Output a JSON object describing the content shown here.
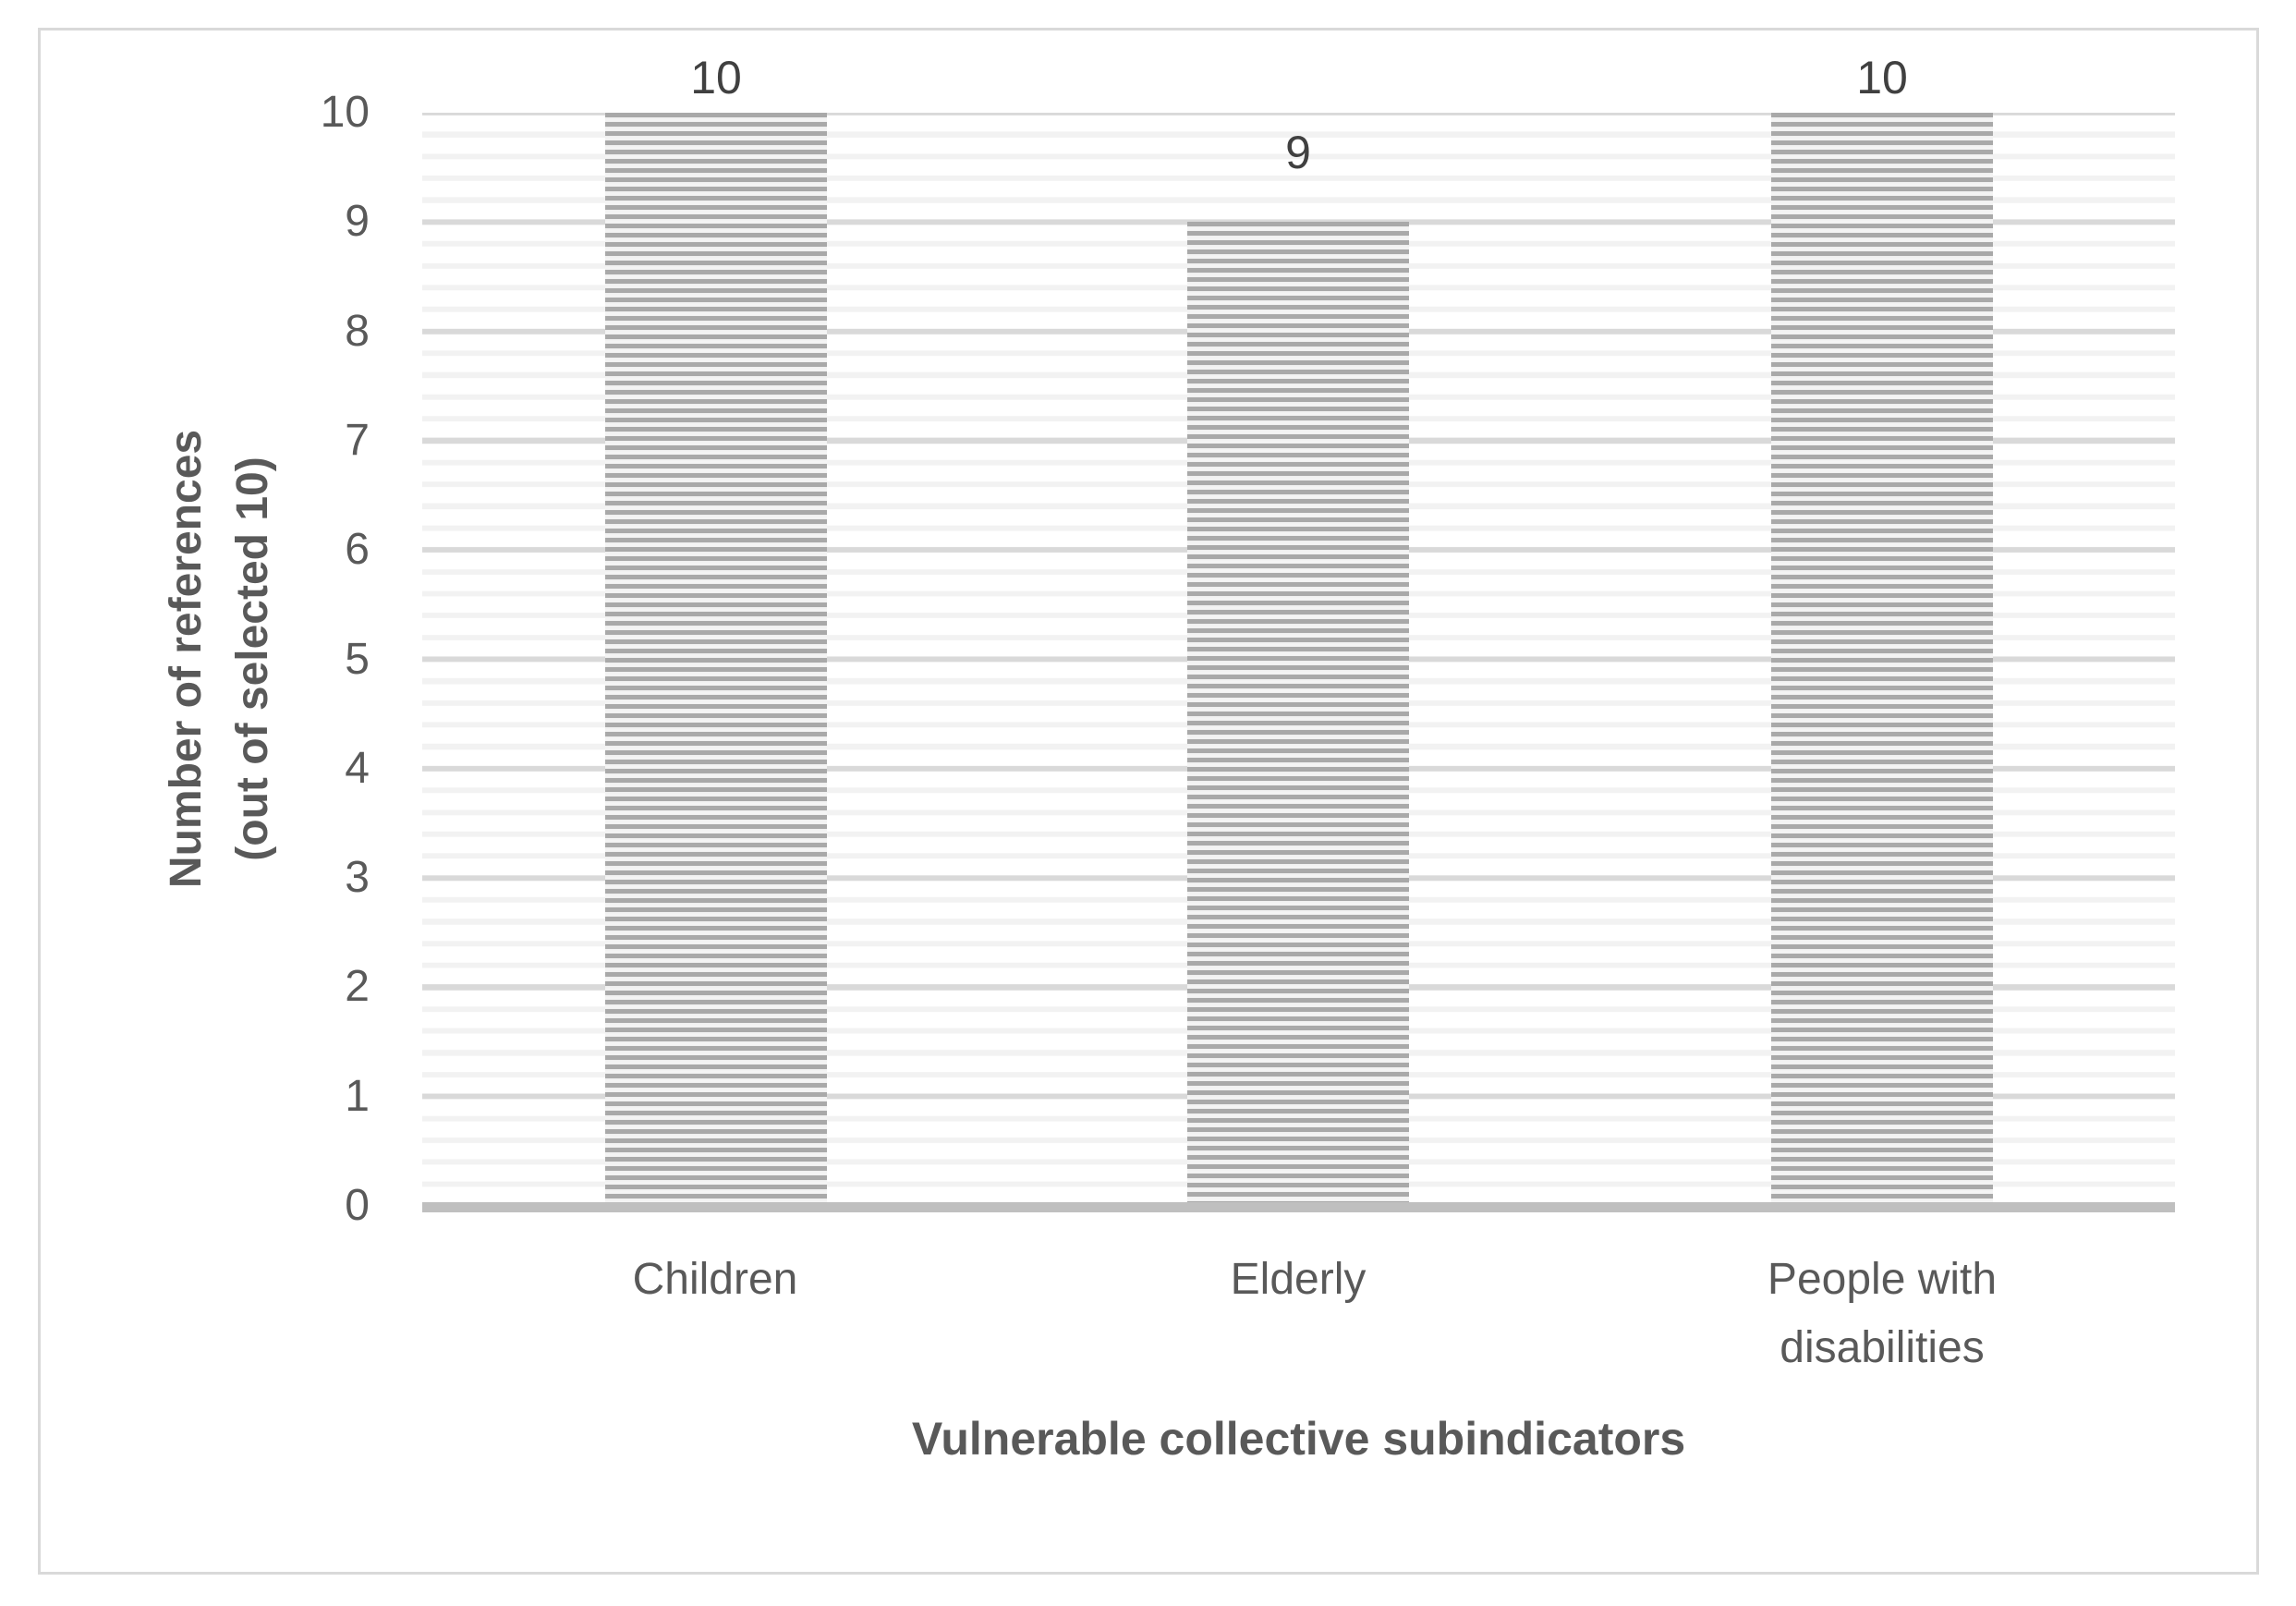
{
  "chart_data": {
    "type": "bar",
    "title": "",
    "categories": [
      "Children",
      "Elderly",
      "People with disabilities"
    ],
    "values": [
      10,
      9,
      10
    ],
    "data_labels": [
      "10",
      "9",
      "10"
    ],
    "xlabel": "Vulnerable collective subindicators",
    "ylabel": "Number of references (out of selected 10)",
    "ylabel_lines": [
      "Number of references",
      "(out of selected 10)"
    ],
    "ylim": [
      0,
      10
    ],
    "ytick_labels": [
      "10",
      "9",
      "8",
      "7",
      "6",
      "5",
      "4",
      "3",
      "2",
      "1",
      "0"
    ],
    "ytick_major_interval": 1,
    "ytick_minor_interval": 0.2,
    "grid": "horizontal major and minor gridlines on, no vertical gridlines",
    "legend": "none",
    "bar_pattern": "horizontal stripes (gray on light gray)",
    "colors": {
      "bar_stripe_dark": "#a9a9a9",
      "bar_stripe_light": "#efefef",
      "gridline_major": "#d9d9d9",
      "gridline_minor": "#f2f2f2",
      "axis_line": "#bfbfbf",
      "tick_text": "#595959",
      "data_label_text": "#404040",
      "axis_title_text": "#595959",
      "frame_border": "#d9d9d9",
      "background": "#ffffff"
    }
  }
}
